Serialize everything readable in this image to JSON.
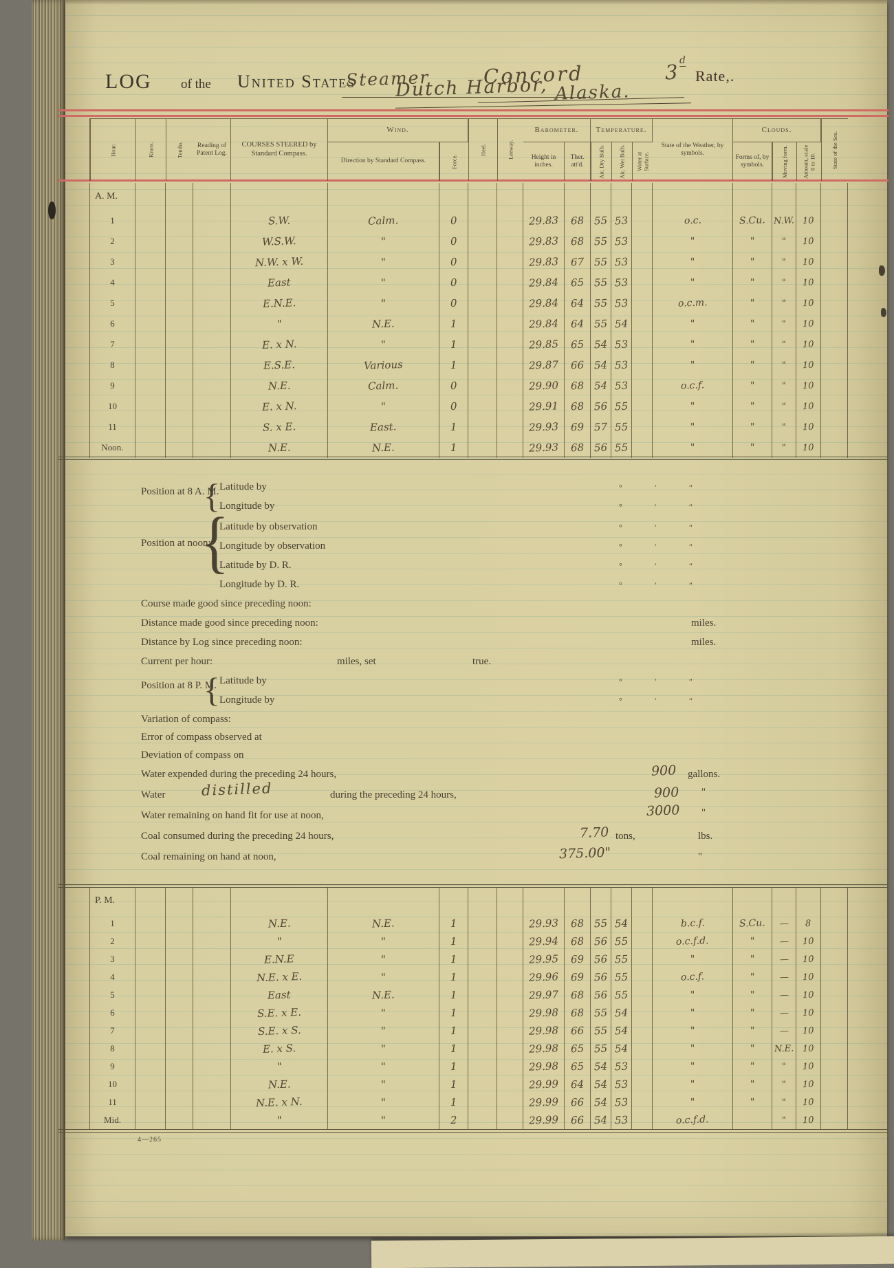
{
  "page": {
    "title_printed_log": "LOG",
    "title_printed_of_the": "of the",
    "title_printed_us": "United States",
    "vessel_type": "Steamer",
    "vessel_name": "Concord",
    "rate_number": "3",
    "rate_superscript": "d",
    "rate_label": "Rate,.",
    "port": "Dutch Harbor,",
    "state": "Alaska.",
    "form_number": "4—265"
  },
  "table_headers": {
    "hour": "Hour.",
    "knots": "Knots.",
    "tenths": "Tenths.",
    "patent_log": "Reading of Patent Log.",
    "courses": "COURSES STEERED by Standard Compass.",
    "wind_group": "Wind.",
    "wind_direction": "Direction by Standard Compass.",
    "wind_force": "Force.",
    "heel": "Heel.",
    "leeway": "Leeway.",
    "barometer_group": "Barometer.",
    "barometer_height": "Height in inches.",
    "barometer_ther": "Ther. att'd.",
    "temperature_group": "Temperature.",
    "temp_dry": "Air, Dry Bulb.",
    "temp_wet": "Air, Wet Bulb.",
    "temp_water": "Water at Surface.",
    "weather": "State of the Weather, by symbols.",
    "clouds_group": "Clouds.",
    "clouds_forms": "Forms of, by symbols.",
    "clouds_moving": "Moving form.",
    "clouds_amount": "Amount, scale 0 to 10.",
    "sea": "State of the Sea."
  },
  "am": {
    "label": "A. M.",
    "rows": [
      {
        "hour": "1",
        "courses": "S.W.",
        "direction": "Calm.",
        "force": "0",
        "height": "29.83",
        "ther": "68",
        "dry": "55",
        "wet": "53",
        "weather": "o.c.",
        "forms": "S.Cu.",
        "moving": "N.W.",
        "amount": "10"
      },
      {
        "hour": "2",
        "courses": "W.S.W.",
        "direction": "\"",
        "force": "0",
        "height": "29.83",
        "ther": "68",
        "dry": "55",
        "wet": "53",
        "weather": "\"",
        "forms": "\"",
        "moving": "\"",
        "amount": "10"
      },
      {
        "hour": "3",
        "courses": "N.W. x W.",
        "direction": "\"",
        "force": "0",
        "height": "29.83",
        "ther": "67",
        "dry": "55",
        "wet": "53",
        "weather": "\"",
        "forms": "\"",
        "moving": "\"",
        "amount": "10"
      },
      {
        "hour": "4",
        "courses": "East",
        "direction": "\"",
        "force": "0",
        "height": "29.84",
        "ther": "65",
        "dry": "55",
        "wet": "53",
        "weather": "\"",
        "forms": "\"",
        "moving": "\"",
        "amount": "10"
      },
      {
        "hour": "5",
        "courses": "E.N.E.",
        "direction": "\"",
        "force": "0",
        "height": "29.84",
        "ther": "64",
        "dry": "55",
        "wet": "53",
        "weather": "o.c.m.",
        "forms": "\"",
        "moving": "\"",
        "amount": "10"
      },
      {
        "hour": "6",
        "courses": "\"",
        "direction": "N.E.",
        "force": "1",
        "height": "29.84",
        "ther": "64",
        "dry": "55",
        "wet": "54",
        "weather": "\"",
        "forms": "\"",
        "moving": "\"",
        "amount": "10"
      },
      {
        "hour": "7",
        "courses": "E. x N.",
        "direction": "\"",
        "force": "1",
        "height": "29.85",
        "ther": "65",
        "dry": "54",
        "wet": "53",
        "weather": "\"",
        "forms": "\"",
        "moving": "\"",
        "amount": "10"
      },
      {
        "hour": "8",
        "courses": "E.S.E.",
        "direction": "Various",
        "force": "1",
        "height": "29.87",
        "ther": "66",
        "dry": "54",
        "wet": "53",
        "weather": "\"",
        "forms": "\"",
        "moving": "\"",
        "amount": "10"
      },
      {
        "hour": "9",
        "courses": "N.E.",
        "direction": "Calm.",
        "force": "0",
        "height": "29.90",
        "ther": "68",
        "dry": "54",
        "wet": "53",
        "weather": "o.c.f.",
        "forms": "\"",
        "moving": "\"",
        "amount": "10"
      },
      {
        "hour": "10",
        "courses": "E. x N.",
        "direction": "\"",
        "force": "0",
        "height": "29.91",
        "ther": "68",
        "dry": "56",
        "wet": "55",
        "weather": "\"",
        "forms": "\"",
        "moving": "\"",
        "amount": "10"
      },
      {
        "hour": "11",
        "courses": "S. x E.",
        "direction": "East.",
        "force": "1",
        "height": "29.93",
        "ther": "69",
        "dry": "57",
        "wet": "55",
        "weather": "\"",
        "forms": "\"",
        "moving": "\"",
        "amount": "10"
      },
      {
        "hour": "Noon.",
        "courses": "N.E.",
        "direction": "N.E.",
        "force": "1",
        "height": "29.93",
        "ther": "68",
        "dry": "56",
        "wet": "55",
        "weather": "\"",
        "forms": "\"",
        "moving": "\"",
        "amount": "10"
      }
    ]
  },
  "pm": {
    "label": "P. M.",
    "rows": [
      {
        "hour": "1",
        "courses": "N.E.",
        "direction": "N.E.",
        "force": "1",
        "height": "29.93",
        "ther": "68",
        "dry": "55",
        "wet": "54",
        "weather": "b.c.f.",
        "forms": "S.Cu.",
        "moving": "—",
        "amount": "8"
      },
      {
        "hour": "2",
        "courses": "\"",
        "direction": "\"",
        "force": "1",
        "height": "29.94",
        "ther": "68",
        "dry": "56",
        "wet": "55",
        "weather": "o.c.f.d.",
        "forms": "\"",
        "moving": "—",
        "amount": "10"
      },
      {
        "hour": "3",
        "courses": "E.N.E",
        "direction": "\"",
        "force": "1",
        "height": "29.95",
        "ther": "69",
        "dry": "56",
        "wet": "55",
        "weather": "\"",
        "forms": "\"",
        "moving": "—",
        "amount": "10"
      },
      {
        "hour": "4",
        "courses": "N.E. x E.",
        "direction": "\"",
        "force": "1",
        "height": "29.96",
        "ther": "69",
        "dry": "56",
        "wet": "55",
        "weather": "o.c.f.",
        "forms": "\"",
        "moving": "—",
        "amount": "10"
      },
      {
        "hour": "5",
        "courses": "East",
        "direction": "N.E.",
        "force": "1",
        "height": "29.97",
        "ther": "68",
        "dry": "56",
        "wet": "55",
        "weather": "\"",
        "forms": "\"",
        "moving": "—",
        "amount": "10"
      },
      {
        "hour": "6",
        "courses": "S.E. x E.",
        "direction": "\"",
        "force": "1",
        "height": "29.98",
        "ther": "68",
        "dry": "55",
        "wet": "54",
        "weather": "\"",
        "forms": "\"",
        "moving": "—",
        "amount": "10"
      },
      {
        "hour": "7",
        "courses": "S.E. x S.",
        "direction": "\"",
        "force": "1",
        "height": "29.98",
        "ther": "66",
        "dry": "55",
        "wet": "54",
        "weather": "\"",
        "forms": "\"",
        "moving": "—",
        "amount": "10"
      },
      {
        "hour": "8",
        "courses": "E. x S.",
        "direction": "\"",
        "force": "1",
        "height": "29.98",
        "ther": "65",
        "dry": "55",
        "wet": "54",
        "weather": "\"",
        "forms": "\"",
        "moving": "N.E.",
        "amount": "10"
      },
      {
        "hour": "9",
        "courses": "\"",
        "direction": "\"",
        "force": "1",
        "height": "29.98",
        "ther": "65",
        "dry": "54",
        "wet": "53",
        "weather": "\"",
        "forms": "\"",
        "moving": "\"",
        "amount": "10"
      },
      {
        "hour": "10",
        "courses": "N.E.",
        "direction": "\"",
        "force": "1",
        "height": "29.99",
        "ther": "64",
        "dry": "54",
        "wet": "53",
        "weather": "\"",
        "forms": "\"",
        "moving": "\"",
        "amount": "10"
      },
      {
        "hour": "11",
        "courses": "N.E. x N.",
        "direction": "\"",
        "force": "1",
        "height": "29.99",
        "ther": "66",
        "dry": "54",
        "wet": "53",
        "weather": "\"",
        "forms": "\"",
        "moving": "\"",
        "amount": "10"
      },
      {
        "hour": "Mid.",
        "courses": "\"",
        "direction": "\"",
        "force": "2",
        "height": "29.99",
        "ther": "66",
        "dry": "54",
        "wet": "53",
        "weather": "o.c.f.d.",
        "forms": "",
        "moving": "\"",
        "amount": "10"
      }
    ]
  },
  "summary": {
    "position_8am": {
      "label": "Position at 8 A. M.",
      "lines": [
        "Latitude by",
        "Longitude by"
      ]
    },
    "position_noon": {
      "label": "Position at noon:",
      "lines": [
        "Latitude by observation",
        "Longitude by observation",
        "Latitude by D. R.",
        "Longitude by D. R."
      ]
    },
    "course_made_good": "Course made good since preceding noon:",
    "distance_made_good": "Distance made good since preceding noon:",
    "distance_by_log": "Distance by Log since preceding noon:",
    "miles_unit": "miles.",
    "current_label": "Current per hour:",
    "current_mid": "miles, set",
    "current_end": "true.",
    "position_8pm": {
      "label": "Position at 8 P. M.",
      "lines": [
        "Latitude by",
        "Longitude by"
      ]
    },
    "variation": "Variation of compass:",
    "error": "Error of compass observed at",
    "deviation": "Deviation of compass on",
    "water_expended": {
      "label": "Water expended during the preceding 24 hours,",
      "value": "900",
      "unit": "gallons."
    },
    "water_distilled": {
      "pre": "Water",
      "hand": "distilled",
      "post": "during the preceding 24 hours,",
      "value": "900",
      "unit": "\""
    },
    "water_remaining": {
      "label": "Water remaining on hand fit for use at noon,",
      "value": "3000",
      "unit": "\""
    },
    "coal_consumed": {
      "label": "Coal consumed during the preceding 24 hours,",
      "value": "7.70",
      "tons": "tons,",
      "unit": "lbs."
    },
    "coal_remaining": {
      "label": "Coal remaining on hand at noon,",
      "value": "375.00\"",
      "unit": "\""
    },
    "dms": {
      "deg": "°",
      "min": "′",
      "sec": "″"
    }
  },
  "colors": {
    "paper": "#d8cfa1",
    "red_rule": "#cf6b64",
    "ink_print": "#453e30",
    "ink_hand": "#544733",
    "background": "#76736a"
  }
}
